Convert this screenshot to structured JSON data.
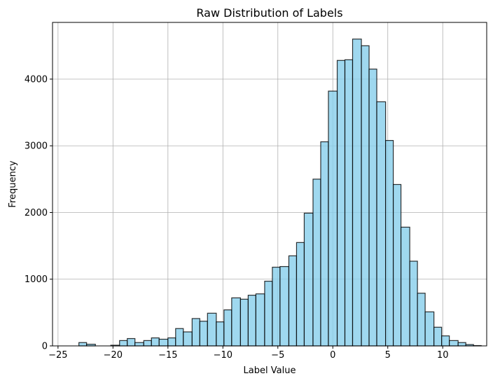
{
  "chart_data": {
    "type": "bar",
    "title": "Raw Distribution of Labels",
    "xlabel": "Label Value",
    "ylabel": "Frequency",
    "xlim": [
      -25.5,
      14.0
    ],
    "ylim": [
      0,
      4850
    ],
    "grid": true,
    "bar_color": "#87CEEB",
    "edge_color": "#000000",
    "x_ticks": [
      -25,
      -20,
      -15,
      -10,
      -5,
      0,
      5,
      10
    ],
    "x_tick_labels": [
      "−25",
      "−20",
      "−15",
      "−10",
      "−5",
      "0",
      "5",
      "10"
    ],
    "y_ticks": [
      0,
      1000,
      2000,
      3000,
      4000
    ],
    "y_tick_labels": [
      "0",
      "1000",
      "2000",
      "3000",
      "4000"
    ],
    "bin_edges": [
      -23.1,
      -22.4,
      -21.6,
      -20.9,
      -20.2,
      -19.4,
      -18.7,
      -18.0,
      -17.2,
      -16.5,
      -15.8,
      -15.0,
      -14.3,
      -13.6,
      -12.8,
      -12.1,
      -11.4,
      -10.6,
      -9.9,
      -9.2,
      -8.4,
      -7.7,
      -7.0,
      -6.2,
      -5.5,
      -4.8,
      -4.0,
      -3.3,
      -2.6,
      -1.8,
      -1.1,
      -0.4,
      0.4,
      1.1,
      1.8,
      2.6,
      3.3,
      4.0,
      4.8,
      5.5,
      6.2,
      7.0,
      7.7,
      8.4,
      9.2,
      9.9,
      10.6,
      11.4,
      12.1,
      12.8
    ],
    "values": [
      50,
      25,
      0,
      0,
      10,
      80,
      110,
      50,
      80,
      120,
      100,
      120,
      260,
      210,
      410,
      370,
      490,
      360,
      540,
      720,
      700,
      760,
      780,
      970,
      1180,
      1190,
      1350,
      1550,
      1990,
      2500,
      3060,
      3820,
      4280,
      4290,
      4600,
      4500,
      4150,
      3660,
      3080,
      2420,
      1780,
      1270,
      790,
      510,
      280,
      150,
      80,
      50,
      20,
      5
    ]
  }
}
